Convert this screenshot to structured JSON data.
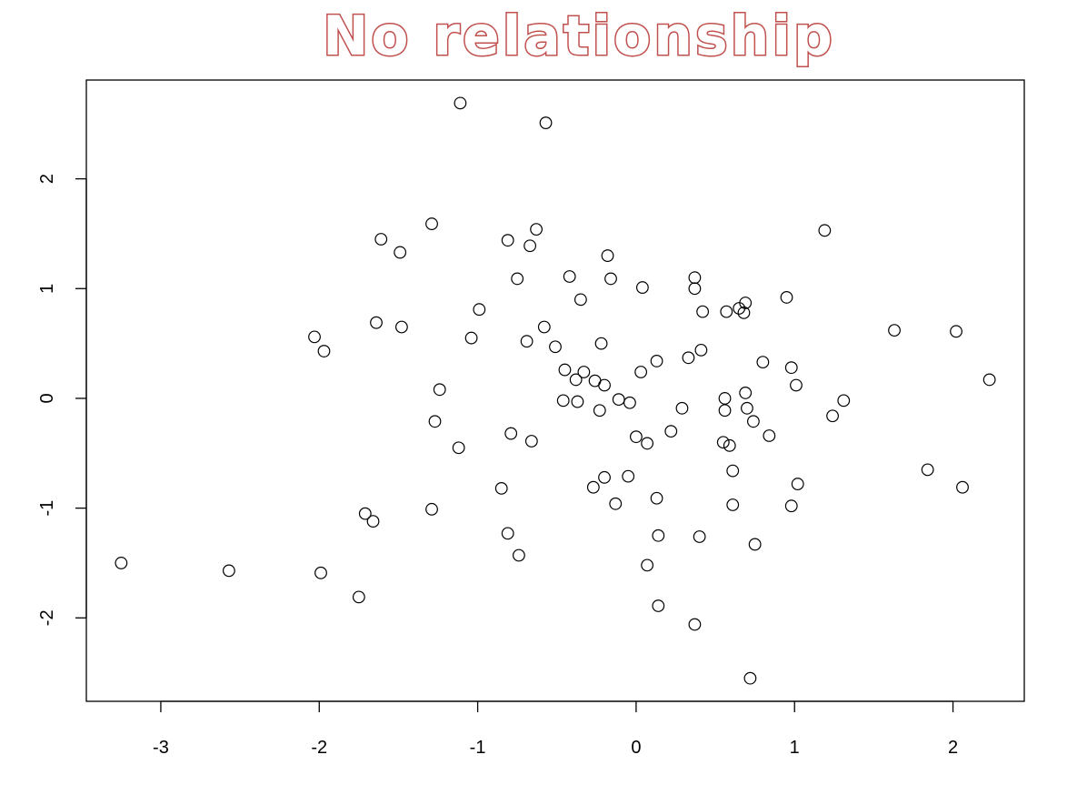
{
  "chart_data": {
    "type": "scatter",
    "title": "No relationship",
    "xlabel": "",
    "ylabel": "",
    "xlim": [
      -3.47,
      2.45
    ],
    "ylim": [
      -2.76,
      2.9
    ],
    "x_ticks": [
      -3,
      -2,
      -1,
      0,
      1,
      2
    ],
    "y_ticks": [
      -2,
      -1,
      0,
      1,
      2
    ],
    "x_tick_labels": [
      "-3",
      "-2",
      "-1",
      "0",
      "1",
      "2"
    ],
    "y_tick_labels": [
      "-2",
      "-1",
      "0",
      "1",
      "2"
    ],
    "grid": false,
    "legend": "none",
    "point_style": "open-circle",
    "colors": {
      "title_outline": "#c0504d",
      "points": "#000000"
    },
    "points": [
      {
        "x": -1.11,
        "y": 2.69
      },
      {
        "x": -0.57,
        "y": 2.51
      },
      {
        "x": -1.29,
        "y": 1.59
      },
      {
        "x": -0.63,
        "y": 1.54
      },
      {
        "x": 1.19,
        "y": 1.53
      },
      {
        "x": -1.61,
        "y": 1.45
      },
      {
        "x": -0.81,
        "y": 1.44
      },
      {
        "x": -0.67,
        "y": 1.39
      },
      {
        "x": -1.49,
        "y": 1.33
      },
      {
        "x": -0.18,
        "y": 1.3
      },
      {
        "x": -0.42,
        "y": 1.11
      },
      {
        "x": -0.75,
        "y": 1.09
      },
      {
        "x": -0.16,
        "y": 1.09
      },
      {
        "x": 0.37,
        "y": 1.1
      },
      {
        "x": 0.04,
        "y": 1.01
      },
      {
        "x": 0.37,
        "y": 1.0
      },
      {
        "x": -0.35,
        "y": 0.9
      },
      {
        "x": 0.95,
        "y": 0.92
      },
      {
        "x": 0.69,
        "y": 0.87
      },
      {
        "x": 0.65,
        "y": 0.82
      },
      {
        "x": -0.99,
        "y": 0.81
      },
      {
        "x": 0.57,
        "y": 0.79
      },
      {
        "x": 0.42,
        "y": 0.79
      },
      {
        "x": 0.68,
        "y": 0.78
      },
      {
        "x": -1.64,
        "y": 0.69
      },
      {
        "x": -1.48,
        "y": 0.65
      },
      {
        "x": -0.58,
        "y": 0.65
      },
      {
        "x": 1.63,
        "y": 0.62
      },
      {
        "x": 2.02,
        "y": 0.61
      },
      {
        "x": -2.03,
        "y": 0.56
      },
      {
        "x": -1.04,
        "y": 0.55
      },
      {
        "x": -0.69,
        "y": 0.52
      },
      {
        "x": -0.22,
        "y": 0.5
      },
      {
        "x": -0.51,
        "y": 0.47
      },
      {
        "x": -1.97,
        "y": 0.43
      },
      {
        "x": 0.41,
        "y": 0.44
      },
      {
        "x": 0.33,
        "y": 0.37
      },
      {
        "x": 0.13,
        "y": 0.34
      },
      {
        "x": 0.8,
        "y": 0.33
      },
      {
        "x": 0.98,
        "y": 0.28
      },
      {
        "x": -0.45,
        "y": 0.26
      },
      {
        "x": -0.33,
        "y": 0.24
      },
      {
        "x": 0.03,
        "y": 0.24
      },
      {
        "x": -0.38,
        "y": 0.17
      },
      {
        "x": -0.26,
        "y": 0.16
      },
      {
        "x": 2.23,
        "y": 0.17
      },
      {
        "x": -0.2,
        "y": 0.12
      },
      {
        "x": 1.01,
        "y": 0.12
      },
      {
        "x": -1.24,
        "y": 0.08
      },
      {
        "x": 0.69,
        "y": 0.05
      },
      {
        "x": 0.56,
        "y": 0.0
      },
      {
        "x": -0.11,
        "y": -0.01
      },
      {
        "x": -0.46,
        "y": -0.02
      },
      {
        "x": -0.37,
        "y": -0.03
      },
      {
        "x": 1.31,
        "y": -0.02
      },
      {
        "x": -0.04,
        "y": -0.04
      },
      {
        "x": 0.29,
        "y": -0.09
      },
      {
        "x": 0.7,
        "y": -0.09
      },
      {
        "x": -0.23,
        "y": -0.11
      },
      {
        "x": 0.56,
        "y": -0.11
      },
      {
        "x": 1.24,
        "y": -0.16
      },
      {
        "x": -1.27,
        "y": -0.21
      },
      {
        "x": 0.74,
        "y": -0.21
      },
      {
        "x": 0.22,
        "y": -0.3
      },
      {
        "x": -0.79,
        "y": -0.32
      },
      {
        "x": 0.0,
        "y": -0.35
      },
      {
        "x": 0.84,
        "y": -0.34
      },
      {
        "x": -0.66,
        "y": -0.39
      },
      {
        "x": 0.55,
        "y": -0.4
      },
      {
        "x": 0.07,
        "y": -0.41
      },
      {
        "x": 0.59,
        "y": -0.43
      },
      {
        "x": -1.12,
        "y": -0.45
      },
      {
        "x": 0.61,
        "y": -0.66
      },
      {
        "x": 1.84,
        "y": -0.65
      },
      {
        "x": -0.2,
        "y": -0.72
      },
      {
        "x": -0.05,
        "y": -0.71
      },
      {
        "x": 1.02,
        "y": -0.78
      },
      {
        "x": -0.27,
        "y": -0.81
      },
      {
        "x": -0.85,
        "y": -0.82
      },
      {
        "x": 2.06,
        "y": -0.81
      },
      {
        "x": 0.13,
        "y": -0.91
      },
      {
        "x": -0.13,
        "y": -0.96
      },
      {
        "x": 0.61,
        "y": -0.97
      },
      {
        "x": 0.98,
        "y": -0.98
      },
      {
        "x": -1.29,
        "y": -1.01
      },
      {
        "x": -1.71,
        "y": -1.05
      },
      {
        "x": -1.66,
        "y": -1.12
      },
      {
        "x": -0.81,
        "y": -1.23
      },
      {
        "x": 0.14,
        "y": -1.25
      },
      {
        "x": 0.4,
        "y": -1.26
      },
      {
        "x": 0.75,
        "y": -1.33
      },
      {
        "x": -0.74,
        "y": -1.43
      },
      {
        "x": -3.25,
        "y": -1.5
      },
      {
        "x": 0.07,
        "y": -1.52
      },
      {
        "x": -2.57,
        "y": -1.57
      },
      {
        "x": -1.99,
        "y": -1.59
      },
      {
        "x": -1.75,
        "y": -1.81
      },
      {
        "x": 0.14,
        "y": -1.89
      },
      {
        "x": 0.37,
        "y": -2.06
      },
      {
        "x": 0.72,
        "y": -2.55
      }
    ]
  }
}
